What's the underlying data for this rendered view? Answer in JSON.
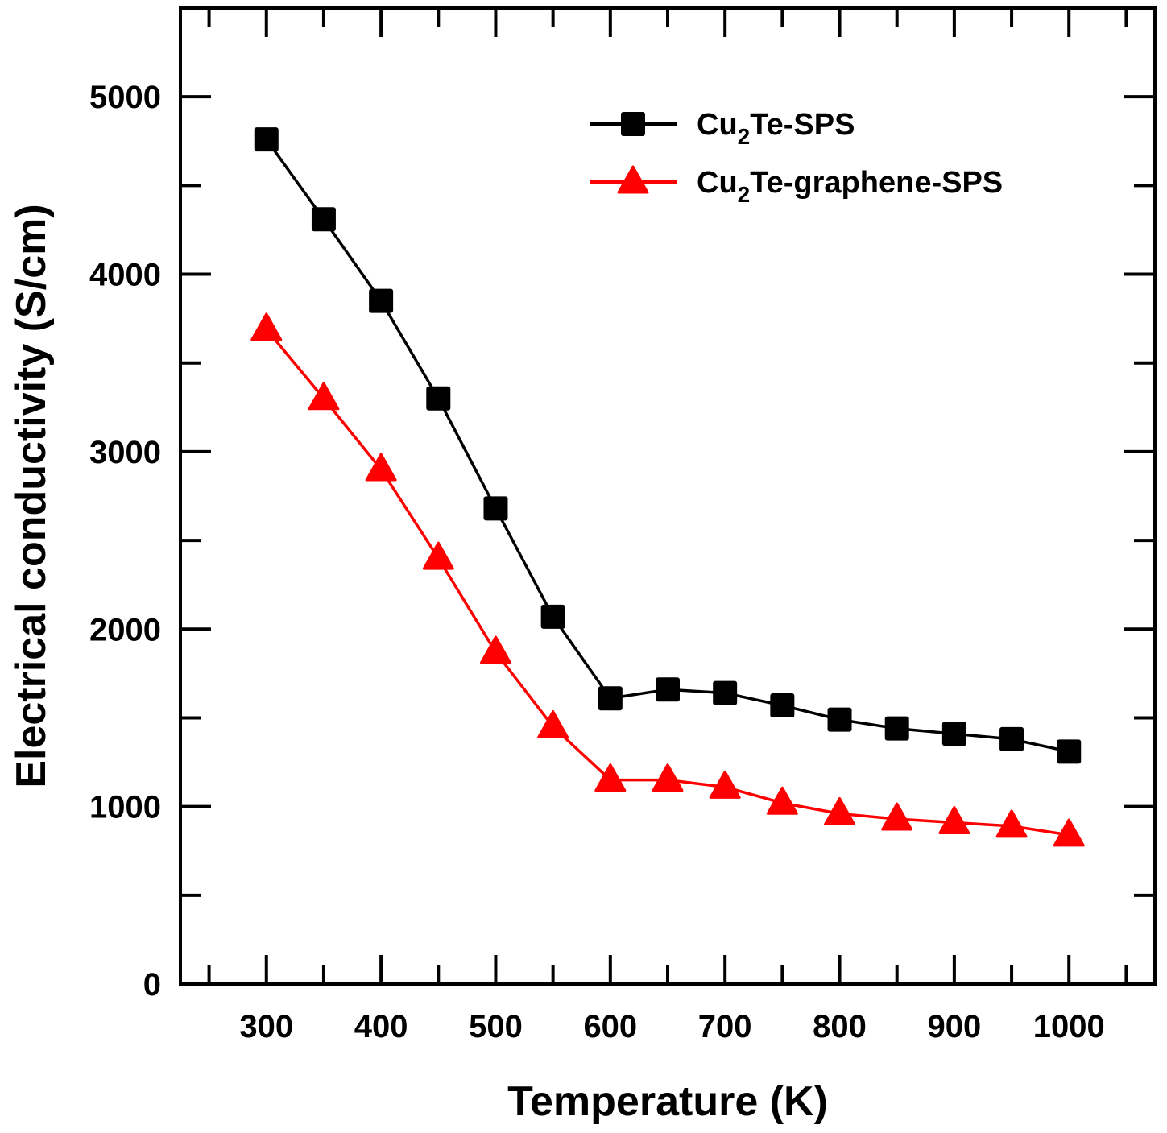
{
  "chart_data": {
    "type": "line",
    "title": "",
    "xlabel": "Temperature (K)",
    "ylabel": "Electrical conductivity (S/cm)",
    "xlim": [
      225,
      1075
    ],
    "ylim": [
      0,
      5500
    ],
    "x_major_ticks": [
      300,
      400,
      500,
      600,
      700,
      800,
      900,
      1000
    ],
    "x_minor_ticks": [
      250,
      350,
      450,
      550,
      650,
      750,
      850,
      950,
      1050
    ],
    "y_major_ticks": [
      0,
      1000,
      2000,
      3000,
      4000,
      5000
    ],
    "y_minor_ticks": [
      500,
      1500,
      2500,
      3500,
      4500,
      5500
    ],
    "x_tick_labels": [
      "300",
      "400",
      "500",
      "600",
      "700",
      "800",
      "900",
      "1000"
    ],
    "y_tick_labels": [
      "0",
      "1000",
      "2000",
      "3000",
      "4000",
      "5000"
    ],
    "grid": false,
    "legend_position": "top-right",
    "x": [
      300,
      350,
      400,
      450,
      500,
      550,
      600,
      650,
      700,
      750,
      800,
      850,
      900,
      950,
      1000
    ],
    "series": [
      {
        "name": "Cu2Te-SPS",
        "name_parts": [
          "Cu",
          "2",
          "Te-SPS"
        ],
        "color": "#000000",
        "marker": "square",
        "values": [
          4760,
          4310,
          3850,
          3300,
          2680,
          2070,
          1610,
          1660,
          1640,
          1570,
          1490,
          1440,
          1410,
          1380,
          1310
        ]
      },
      {
        "name": "Cu2Te-graphene-SPS",
        "name_parts": [
          "Cu",
          "2",
          "Te-graphene-SPS"
        ],
        "color": "#ff0000",
        "marker": "triangle",
        "values": [
          3690,
          3300,
          2900,
          2400,
          1870,
          1450,
          1150,
          1150,
          1110,
          1020,
          960,
          930,
          910,
          890,
          840
        ]
      }
    ]
  }
}
